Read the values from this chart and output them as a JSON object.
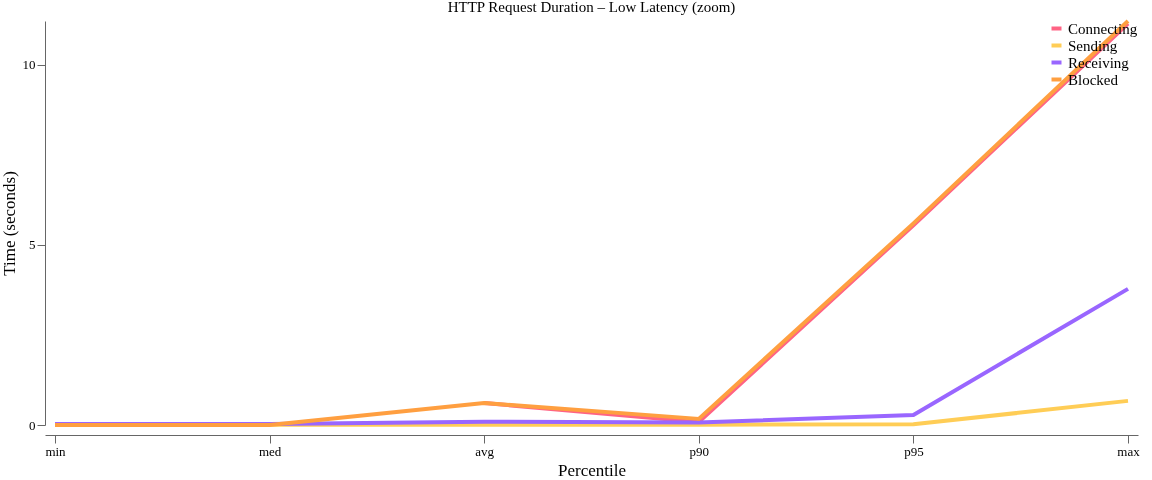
{
  "chart_data": {
    "type": "line",
    "title": "HTTP Request Duration – Low Latency (zoom)",
    "xlabel": "Percentile",
    "ylabel": "Time (seconds)",
    "categories": [
      "min",
      "med",
      "avg",
      "p90",
      "p95",
      "max"
    ],
    "series": [
      {
        "name": "Connecting",
        "color": "#ff6384",
        "values": [
          null,
          null,
          0.61,
          0.08,
          5.55,
          11.15
        ]
      },
      {
        "name": "Sending",
        "color": "#ffcd56",
        "values": [
          null,
          0.01,
          0.01,
          0.01,
          0.02,
          0.67
        ]
      },
      {
        "name": "Receiving",
        "color": "#9966ff",
        "values": [
          0.03,
          0.03,
          0.09,
          0.07,
          0.28,
          3.78
        ]
      },
      {
        "name": "Blocked",
        "color": "#ff9f40",
        "values": [
          0.0,
          0.0,
          0.61,
          0.17,
          5.6,
          11.22
        ]
      }
    ],
    "ylim": [
      0,
      11.22
    ],
    "yticks": [
      0,
      5,
      10
    ],
    "grid": false,
    "legend": "top right",
    "marker": "none",
    "line_style": "solid"
  }
}
